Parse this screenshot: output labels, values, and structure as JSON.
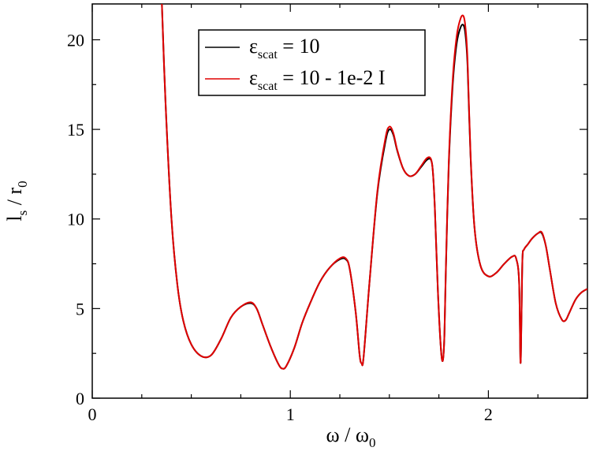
{
  "chart_data": {
    "type": "line",
    "xlabel": {
      "main": "ω / ω",
      "sub": "0"
    },
    "ylabel": {
      "main": "l / r",
      "sub_s": "s",
      "sub_0": "0"
    },
    "xlim": [
      0,
      2.5
    ],
    "ylim": [
      0,
      22
    ],
    "xticks": [
      {
        "value": 0,
        "label": "0"
      },
      {
        "value": 1,
        "label": "1"
      },
      {
        "value": 2,
        "label": "2"
      }
    ],
    "yticks": [
      {
        "value": 0,
        "label": "0"
      },
      {
        "value": 5,
        "label": "5"
      },
      {
        "value": 10,
        "label": "10"
      },
      {
        "value": 15,
        "label": "15"
      },
      {
        "value": 20,
        "label": "20"
      }
    ],
    "legend_position": "top-center",
    "series": [
      {
        "key": "real",
        "color": "#000000",
        "legend": {
          "sym": "ε",
          "sub": "scat",
          "rest": " = 10"
        },
        "x": [
          0.35,
          0.37,
          0.4,
          0.43,
          0.46,
          0.5,
          0.55,
          0.6,
          0.65,
          0.7,
          0.75,
          0.8,
          0.83,
          0.86,
          0.9,
          0.94,
          0.96,
          0.98,
          1.02,
          1.06,
          1.1,
          1.15,
          1.2,
          1.25,
          1.28,
          1.3,
          1.33,
          1.35,
          1.36,
          1.37,
          1.4,
          1.44,
          1.48,
          1.5,
          1.52,
          1.54,
          1.57,
          1.6,
          1.63,
          1.66,
          1.69,
          1.71,
          1.72,
          1.73,
          1.745,
          1.76,
          1.77,
          1.778,
          1.785,
          1.8,
          1.82,
          1.84,
          1.86,
          1.875,
          1.885,
          1.895,
          1.91,
          1.93,
          1.96,
          2.0,
          2.04,
          2.08,
          2.12,
          2.14,
          2.155,
          2.162,
          2.167,
          2.172,
          2.18,
          2.2,
          2.22,
          2.25,
          2.27,
          2.29,
          2.31,
          2.34,
          2.37,
          2.39,
          2.41,
          2.44,
          2.47,
          2.5
        ],
        "y": [
          22.5,
          16.5,
          10.0,
          6.3,
          4.3,
          3.0,
          2.35,
          2.4,
          3.3,
          4.5,
          5.1,
          5.3,
          5.0,
          4.1,
          2.9,
          1.9,
          1.65,
          1.8,
          2.8,
          4.2,
          5.3,
          6.5,
          7.3,
          7.75,
          7.75,
          7.2,
          4.8,
          2.4,
          1.95,
          2.3,
          6.5,
          11.5,
          14.3,
          15.0,
          14.7,
          13.8,
          12.8,
          12.4,
          12.5,
          12.9,
          13.3,
          13.3,
          12.6,
          10.5,
          6.0,
          2.8,
          2.1,
          3.5,
          7.0,
          13.0,
          17.5,
          19.8,
          20.7,
          20.8,
          20.2,
          18.5,
          13.5,
          9.5,
          7.4,
          6.8,
          7.0,
          7.5,
          7.9,
          7.8,
          6.5,
          2.0,
          4.5,
          7.8,
          8.3,
          8.6,
          8.9,
          9.2,
          9.2,
          8.5,
          7.2,
          5.3,
          4.4,
          4.35,
          4.8,
          5.5,
          5.9,
          6.1
        ]
      },
      {
        "key": "complex",
        "color": "#e00000",
        "legend": {
          "sym": "ε",
          "sub": "scat",
          "rest": " = 10 - 1e-2 I"
        },
        "x": [
          0.35,
          0.37,
          0.4,
          0.43,
          0.46,
          0.5,
          0.55,
          0.6,
          0.65,
          0.7,
          0.75,
          0.8,
          0.83,
          0.86,
          0.9,
          0.94,
          0.96,
          0.98,
          1.02,
          1.06,
          1.1,
          1.15,
          1.2,
          1.25,
          1.28,
          1.3,
          1.33,
          1.35,
          1.36,
          1.37,
          1.4,
          1.44,
          1.48,
          1.5,
          1.52,
          1.54,
          1.57,
          1.6,
          1.63,
          1.66,
          1.69,
          1.71,
          1.72,
          1.73,
          1.745,
          1.76,
          1.77,
          1.778,
          1.785,
          1.8,
          1.82,
          1.84,
          1.86,
          1.875,
          1.885,
          1.895,
          1.91,
          1.93,
          1.96,
          2.0,
          2.04,
          2.08,
          2.12,
          2.14,
          2.155,
          2.162,
          2.167,
          2.172,
          2.18,
          2.2,
          2.22,
          2.25,
          2.27,
          2.29,
          2.31,
          2.34,
          2.37,
          2.39,
          2.41,
          2.44,
          2.47,
          2.5
        ],
        "y": [
          22.5,
          16.5,
          10.0,
          6.3,
          4.3,
          3.0,
          2.35,
          2.4,
          3.3,
          4.5,
          5.1,
          5.35,
          5.0,
          4.1,
          2.9,
          1.9,
          1.65,
          1.8,
          2.8,
          4.2,
          5.3,
          6.5,
          7.3,
          7.8,
          7.8,
          7.2,
          4.8,
          2.4,
          1.95,
          2.3,
          6.5,
          11.6,
          14.5,
          15.15,
          14.8,
          13.85,
          12.8,
          12.4,
          12.5,
          12.95,
          13.4,
          13.35,
          12.6,
          10.5,
          6.0,
          2.8,
          2.1,
          3.5,
          7.1,
          13.2,
          17.8,
          20.2,
          21.2,
          21.3,
          20.6,
          18.8,
          13.6,
          9.5,
          7.4,
          6.8,
          7.0,
          7.5,
          7.9,
          7.8,
          6.5,
          2.0,
          4.5,
          7.8,
          8.3,
          8.6,
          8.9,
          9.2,
          9.25,
          8.5,
          7.2,
          5.3,
          4.4,
          4.35,
          4.8,
          5.5,
          5.9,
          6.1
        ]
      }
    ]
  }
}
